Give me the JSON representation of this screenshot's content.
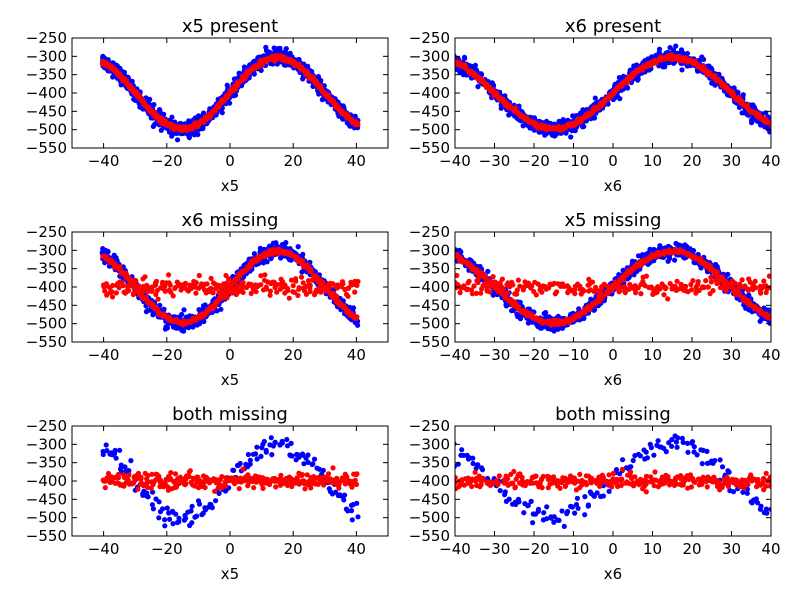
{
  "chart_data": [
    {
      "type": "scatter",
      "title": "x5 present",
      "xlabel": "x5",
      "ylabel": "",
      "xlim": [
        -50,
        50
      ],
      "ylim": [
        -550,
        -250
      ],
      "xticks": [
        -40,
        -20,
        0,
        20,
        40
      ],
      "yticks": [
        -250,
        -300,
        -350,
        -400,
        -450,
        -500,
        -550
      ],
      "x_range": [
        -40,
        40
      ],
      "x_count": 80,
      "series": [
        {
          "color": "#0000ff",
          "shape": "sine",
          "center": -400,
          "amplitude": 100,
          "phase_x": 15,
          "period": 60,
          "spread": 10,
          "points_per_x": 14
        },
        {
          "color": "#ff0000",
          "shape": "sine",
          "center": -400,
          "amplitude": 97,
          "phase_x": 15,
          "period": 60,
          "spread": 3,
          "points_per_x": 6
        }
      ]
    },
    {
      "type": "scatter",
      "title": "x6 present",
      "xlabel": "x6",
      "ylabel": "",
      "xlim": [
        -40,
        40
      ],
      "ylim": [
        -550,
        -250
      ],
      "xticks": [
        -40,
        -30,
        -20,
        -10,
        0,
        10,
        20,
        30,
        40
      ],
      "yticks": [
        -250,
        -300,
        -350,
        -400,
        -450,
        -500,
        -550
      ],
      "x_range": [
        -40,
        40
      ],
      "x_count": 80,
      "series": [
        {
          "color": "#0000ff",
          "shape": "sine",
          "center": -400,
          "amplitude": 100,
          "phase_x": 15,
          "period": 60,
          "spread": 10,
          "points_per_x": 14
        },
        {
          "color": "#ff0000",
          "shape": "sine",
          "center": -400,
          "amplitude": 97,
          "phase_x": 15,
          "period": 60,
          "spread": 3,
          "points_per_x": 6
        }
      ]
    },
    {
      "type": "scatter",
      "title": "x6 missing",
      "xlabel": "x5",
      "ylabel": "",
      "xlim": [
        -50,
        50
      ],
      "ylim": [
        -550,
        -250
      ],
      "xticks": [
        -40,
        -20,
        0,
        20,
        40
      ],
      "yticks": [
        -250,
        -300,
        -350,
        -400,
        -450,
        -500,
        -550
      ],
      "x_range": [
        -40,
        40
      ],
      "x_count": 80,
      "series": [
        {
          "color": "#0000ff",
          "shape": "sine",
          "center": -400,
          "amplitude": 100,
          "phase_x": 15,
          "period": 60,
          "spread": 10,
          "points_per_x": 10
        },
        {
          "color": "#ff0000",
          "shape": "sine",
          "center": -400,
          "amplitude": 97,
          "phase_x": 15,
          "period": 60,
          "spread": 3,
          "points_per_x": 5
        },
        {
          "color": "#ff0000",
          "shape": "flat",
          "center": -400,
          "amplitude": 0,
          "phase_x": 0,
          "period": 60,
          "spread": 12,
          "points_per_x": 3
        }
      ]
    },
    {
      "type": "scatter",
      "title": "x5 missing",
      "xlabel": "x6",
      "ylabel": "",
      "xlim": [
        -40,
        40
      ],
      "ylim": [
        -550,
        -250
      ],
      "xticks": [
        -40,
        -30,
        -20,
        -10,
        0,
        10,
        20,
        30,
        40
      ],
      "yticks": [
        -250,
        -300,
        -350,
        -400,
        -450,
        -500,
        -550
      ],
      "x_range": [
        -40,
        40
      ],
      "x_count": 80,
      "series": [
        {
          "color": "#0000ff",
          "shape": "sine",
          "center": -400,
          "amplitude": 100,
          "phase_x": 15,
          "period": 60,
          "spread": 10,
          "points_per_x": 10
        },
        {
          "color": "#ff0000",
          "shape": "sine",
          "center": -400,
          "amplitude": 97,
          "phase_x": 15,
          "period": 60,
          "spread": 3,
          "points_per_x": 5
        },
        {
          "color": "#ff0000",
          "shape": "flat",
          "center": -400,
          "amplitude": 0,
          "phase_x": 0,
          "period": 60,
          "spread": 12,
          "points_per_x": 3
        }
      ]
    },
    {
      "type": "scatter",
      "title": "both missing",
      "xlabel": "x5",
      "ylabel": "",
      "xlim": [
        -50,
        50
      ],
      "ylim": [
        -550,
        -250
      ],
      "xticks": [
        -40,
        -20,
        0,
        20,
        40
      ],
      "yticks": [
        -250,
        -300,
        -350,
        -400,
        -450,
        -500,
        -550
      ],
      "x_range": [
        -40,
        40
      ],
      "x_count": 80,
      "series": [
        {
          "color": "#0000ff",
          "shape": "sine",
          "center": -400,
          "amplitude": 100,
          "phase_x": 15,
          "period": 60,
          "spread": 14,
          "points_per_x": 2
        },
        {
          "color": "#ff0000",
          "shape": "flat",
          "center": -400,
          "amplitude": 0,
          "phase_x": 0,
          "period": 60,
          "spread": 10,
          "points_per_x": 4
        }
      ]
    },
    {
      "type": "scatter",
      "title": "both missing",
      "xlabel": "x6",
      "ylabel": "",
      "xlim": [
        -40,
        40
      ],
      "ylim": [
        -550,
        -250
      ],
      "xticks": [
        -40,
        -30,
        -20,
        -10,
        0,
        10,
        20,
        30,
        40
      ],
      "yticks": [
        -250,
        -300,
        -350,
        -400,
        -450,
        -500,
        -550
      ],
      "x_range": [
        -40,
        40
      ],
      "x_count": 80,
      "series": [
        {
          "color": "#0000ff",
          "shape": "sine",
          "center": -400,
          "amplitude": 100,
          "phase_x": 15,
          "period": 60,
          "spread": 14,
          "points_per_x": 2
        },
        {
          "color": "#ff0000",
          "shape": "flat",
          "center": -400,
          "amplitude": 0,
          "phase_x": 0,
          "period": 60,
          "spread": 10,
          "points_per_x": 4
        }
      ]
    }
  ]
}
